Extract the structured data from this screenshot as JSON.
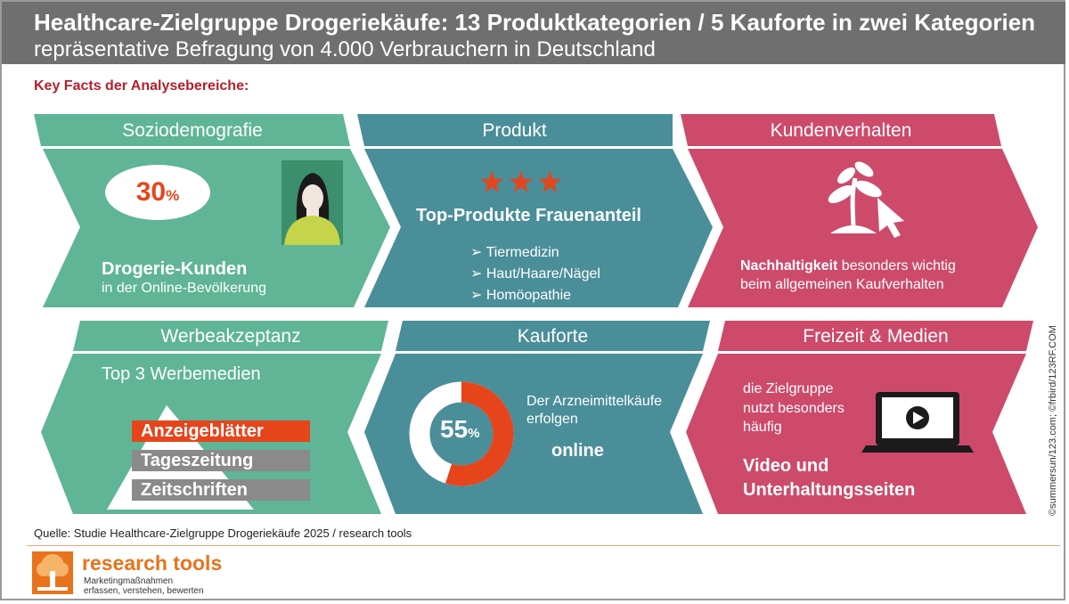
{
  "header": {
    "title": "Healthcare-Zielgruppe Drogeriekäufe: 13 Produktkategorien / 5 Kauforte in zwei Kategorien",
    "subtitle": "repräsentative Befragung von 4.000 Verbrauchern in Deutschland"
  },
  "key_facts_label": "Key Facts der Analysebereiche:",
  "colors": {
    "green": "#5fb596",
    "teal": "#4a8e99",
    "pink": "#cd4a6b",
    "orange": "#e6451c",
    "gray_header": "#6f6f6f"
  },
  "panels": {
    "soziodemografie": {
      "heading": "Soziodemografie",
      "percent_value": "30",
      "percent_sign": "%",
      "bold_line": "Drogerie-Kunden",
      "line": "in der Online-Bevölkerung",
      "icon": "woman-avatar-icon"
    },
    "produkt": {
      "heading": "Produkt",
      "stars": "★★★",
      "star_rating": 3,
      "bold_line": "Top-Produkte Frauenanteil",
      "items": [
        "➢ Tiermedizin",
        "➢ Haut/Haare/Nägel",
        "➢ Homöopathie"
      ]
    },
    "kundenverhalten": {
      "heading": "Kundenverhalten",
      "bold_word": "Nachhaltigkeit",
      "text_rest": " besonders wichtig",
      "line2": "beim allgemeinen Kaufverhalten",
      "icon": "plant-cursor-icon"
    },
    "werbeakzeptanz": {
      "heading": "Werbeakzeptanz",
      "subheading": "Top 3 Werbemedien",
      "media": [
        "Anzeigeblätter",
        "Tageszeitung",
        "Zeitschriften"
      ]
    },
    "kauforte": {
      "heading": "Kauforte",
      "percent_value": "55",
      "percent_sign": "%",
      "share": 0.55,
      "text1": "Der Arzneimittelkäufe",
      "text2": "erfolgen",
      "bold": "online"
    },
    "freizeit": {
      "heading": "Freizeit & Medien",
      "text1": "die Zielgruppe",
      "text2": "nutzt besonders",
      "text3": "häufig",
      "bold1": "Video und",
      "bold2": "Unterhaltungsseiten",
      "icon": "laptop-play-icon"
    }
  },
  "footer": {
    "source": "Quelle: Studie Healthcare-Zielgruppe Drogeriekäufe 2025 / research tools",
    "brand": "research tools",
    "tagline1": "Marketingmaßnahmen",
    "tagline2": "erfassen, verstehen, bewerten",
    "credit": "©summersun/123.com; ©frbird/123RF.COM"
  }
}
